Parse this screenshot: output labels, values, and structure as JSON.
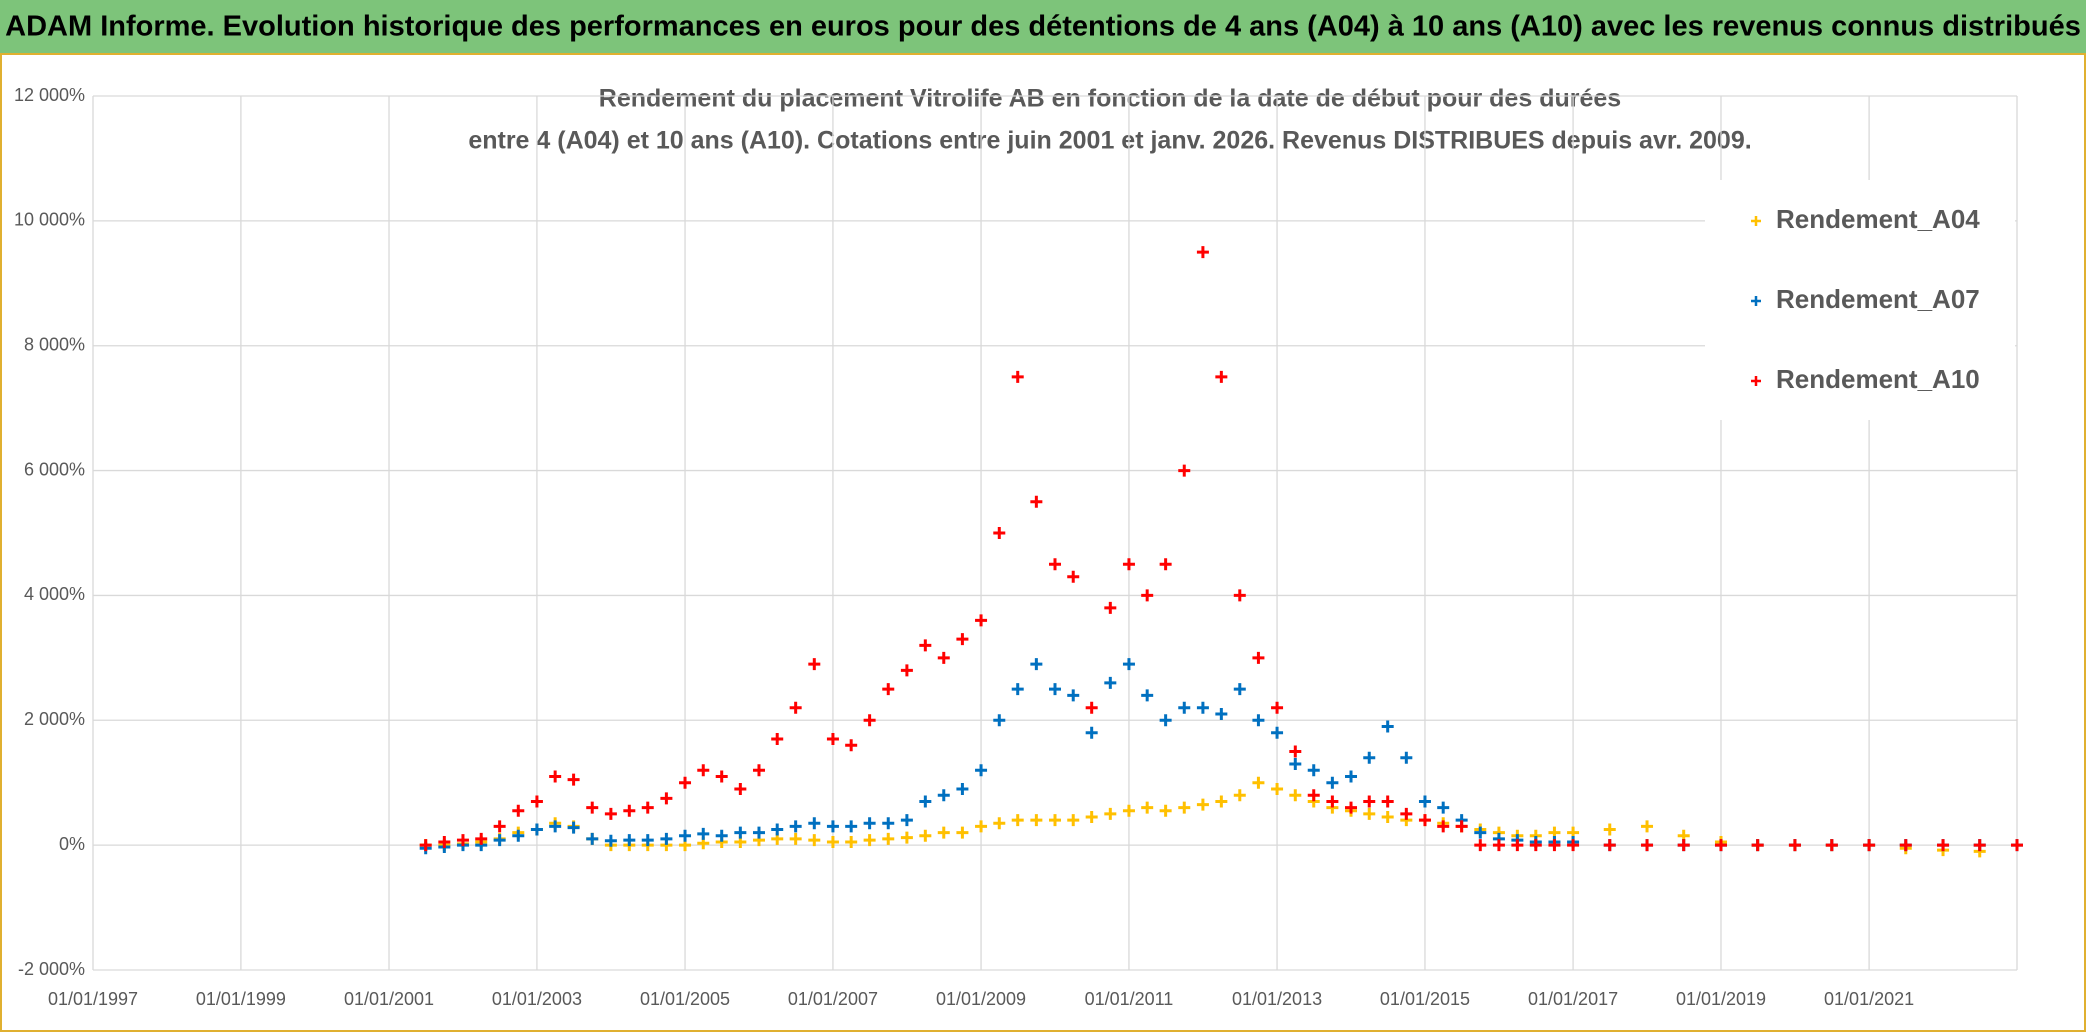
{
  "header": "ADAM Informe. Evolution historique des performances en euros pour des détentions de 4 ans (A04) à 10 ans (A10) avec les revenus connus distribués",
  "chart_data": {
    "type": "scatter",
    "title": [
      "Rendement du placement Vitrolife AB en fonction de la date de début pour des durées",
      "entre 4 (A04) et 10 ans (A10). Cotations entre juin 2001 et janv. 2026. Revenus DISTRIBUES depuis avr. 2009."
    ],
    "x": [
      "01/07/2001",
      "01/10/2001",
      "01/01/2002",
      "01/04/2002",
      "01/07/2002",
      "01/10/2002",
      "01/01/2003",
      "01/04/2003",
      "01/07/2003",
      "01/10/2003",
      "01/01/2004",
      "01/04/2004",
      "01/07/2004",
      "01/10/2004",
      "01/01/2005",
      "01/04/2005",
      "01/07/2005",
      "01/10/2005",
      "01/01/2006",
      "01/04/2006",
      "01/07/2006",
      "01/10/2006",
      "01/01/2007",
      "01/04/2007",
      "01/07/2007",
      "01/10/2007",
      "01/01/2008",
      "01/04/2008",
      "01/07/2008",
      "01/10/2008",
      "01/01/2009",
      "01/04/2009",
      "01/07/2009",
      "01/10/2009",
      "01/01/2010",
      "01/04/2010",
      "01/07/2010",
      "01/10/2010",
      "01/01/2011",
      "01/04/2011",
      "01/07/2011",
      "01/10/2011",
      "01/01/2012",
      "01/04/2012",
      "01/07/2012",
      "01/10/2012",
      "01/01/2013",
      "01/04/2013",
      "01/07/2013",
      "01/10/2013",
      "01/01/2014",
      "01/04/2014",
      "01/07/2014",
      "01/10/2014",
      "01/01/2015",
      "01/04/2015",
      "01/07/2015",
      "01/10/2015",
      "01/01/2016",
      "01/04/2016",
      "01/07/2016",
      "01/10/2016",
      "01/01/2017",
      "01/07/2017",
      "01/01/2018",
      "01/07/2018",
      "01/01/2019",
      "01/07/2019",
      "01/01/2020",
      "01/07/2020",
      "01/01/2021",
      "01/07/2021",
      "01/01/2022",
      "01/07/2022",
      "01/01/2023"
    ],
    "series": [
      {
        "name": "Rendement_A04",
        "color": "#ffc000",
        "values": [
          0,
          0,
          20,
          50,
          100,
          200,
          250,
          350,
          300,
          100,
          0,
          0,
          0,
          0,
          0,
          30,
          50,
          50,
          80,
          100,
          100,
          80,
          50,
          50,
          80,
          100,
          120,
          150,
          200,
          200,
          300,
          350,
          400,
          400,
          400,
          400,
          450,
          500,
          550,
          600,
          550,
          600,
          650,
          700,
          800,
          1000,
          900,
          800,
          700,
          600,
          550,
          500,
          450,
          400,
          400,
          350,
          300,
          250,
          200,
          150,
          150,
          200,
          200,
          250,
          300,
          150,
          50,
          0,
          0,
          0,
          0,
          -50,
          -80,
          -100,
          null
        ]
      },
      {
        "name": "Rendement_A07",
        "color": "#0070c0",
        "values": [
          -50,
          -30,
          0,
          0,
          80,
          150,
          250,
          300,
          280,
          100,
          70,
          80,
          80,
          100,
          150,
          180,
          150,
          200,
          200,
          250,
          300,
          350,
          300,
          300,
          350,
          350,
          400,
          700,
          800,
          900,
          1200,
          2000,
          2500,
          2900,
          2500,
          2400,
          1800,
          2600,
          2900,
          2400,
          2000,
          2200,
          2200,
          2100,
          2500,
          2000,
          1800,
          1300,
          1200,
          1000,
          1100,
          1400,
          1900,
          1400,
          700,
          600,
          400,
          200,
          100,
          80,
          50,
          50,
          50,
          0,
          0,
          0,
          0,
          0,
          0,
          0,
          0,
          0,
          0,
          0,
          0
        ]
      },
      {
        "name": "Rendement_A10",
        "color": "#ff0000",
        "values": [
          0,
          50,
          80,
          100,
          300,
          550,
          700,
          1100,
          1050,
          600,
          500,
          550,
          600,
          750,
          1000,
          1200,
          1100,
          900,
          1200,
          1700,
          2200,
          2900,
          1700,
          1600,
          2000,
          2500,
          2800,
          3200,
          3000,
          3300,
          3600,
          5000,
          7500,
          5500,
          4500,
          4300,
          2200,
          3800,
          4500,
          4000,
          4500,
          6000,
          9500,
          7500,
          4000,
          3000,
          2200,
          1500,
          800,
          700,
          600,
          700,
          700,
          500,
          400,
          300,
          300,
          0,
          0,
          0,
          0,
          0,
          0,
          0,
          0,
          0,
          0,
          0,
          0,
          0,
          0,
          0,
          0,
          0,
          0
        ]
      }
    ],
    "xlim": [
      "01/01/1997",
      "01/01/2023"
    ],
    "xticks": [
      "01/01/1997",
      "01/01/1999",
      "01/01/2001",
      "01/01/2003",
      "01/01/2005",
      "01/01/2007",
      "01/01/2009",
      "01/01/2011",
      "01/01/2013",
      "01/01/2015",
      "01/01/2017",
      "01/01/2019",
      "01/01/2021"
    ],
    "ylim": [
      -2000,
      12000
    ],
    "yticks": [
      {
        "value": -2000,
        "label": "-2 000%"
      },
      {
        "value": 0,
        "label": "0%"
      },
      {
        "value": 2000,
        "label": "2 000%"
      },
      {
        "value": 4000,
        "label": "4 000%"
      },
      {
        "value": 6000,
        "label": "6 000%"
      },
      {
        "value": 8000,
        "label": "8 000%"
      },
      {
        "value": 10000,
        "label": "10 000%"
      },
      {
        "value": 12000,
        "label": "12 000%"
      }
    ],
    "grid": true,
    "legend": "upper right"
  }
}
